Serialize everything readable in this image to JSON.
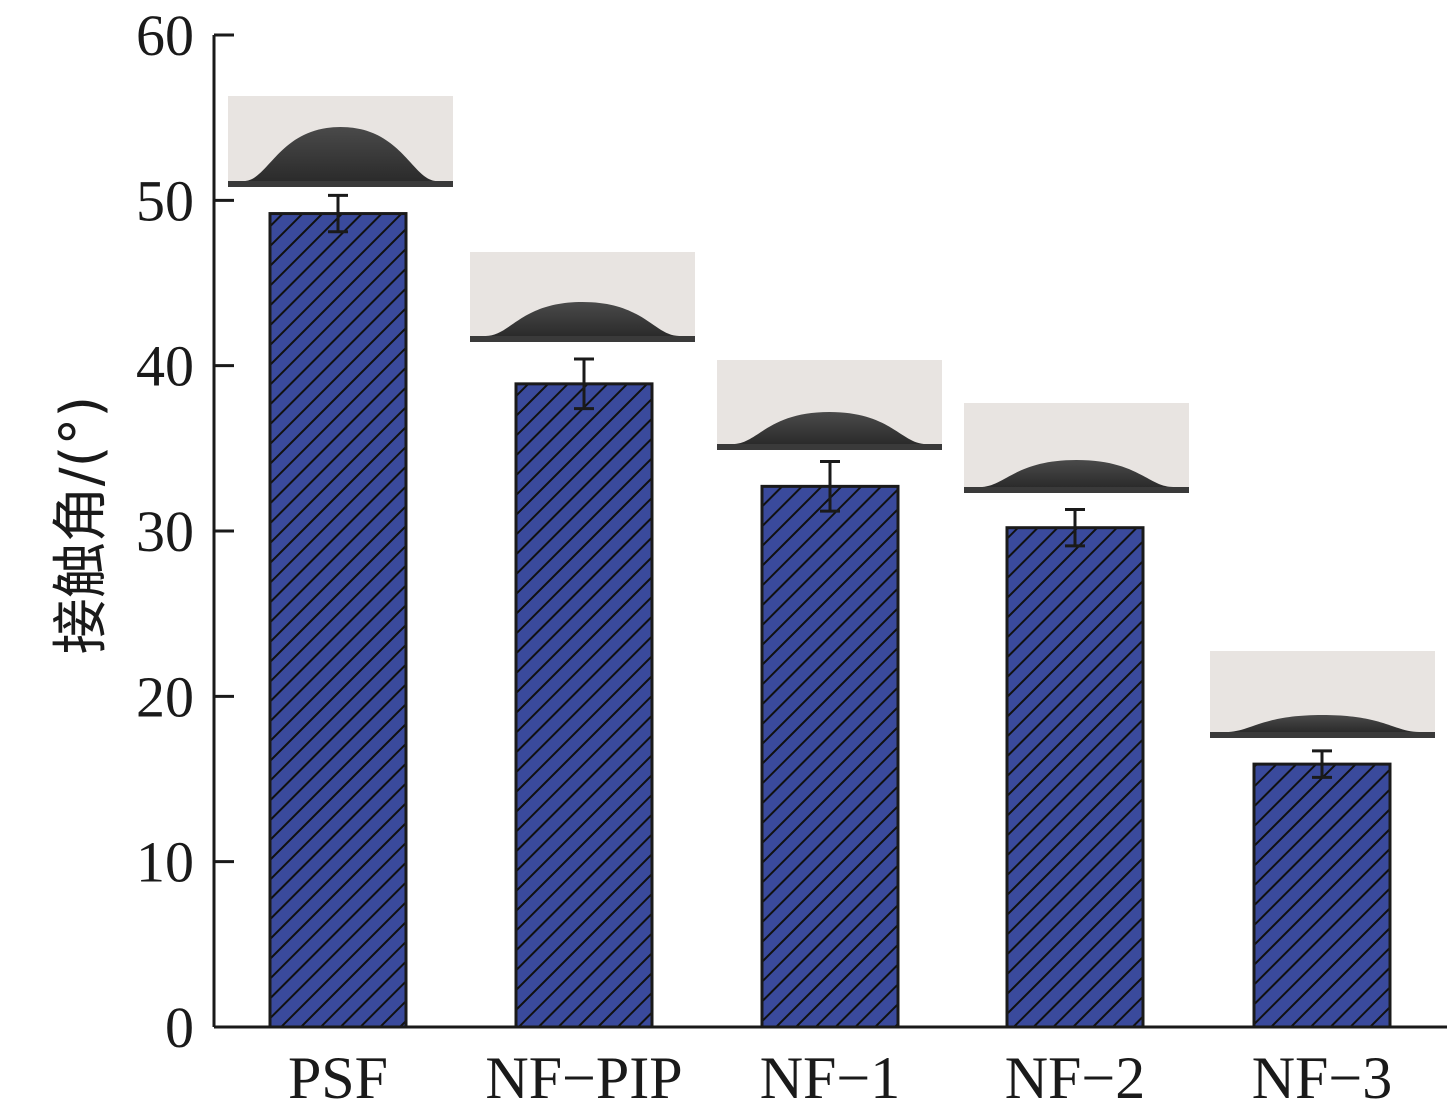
{
  "chart_data": {
    "type": "bar",
    "categories": [
      "PSF",
      "NF−PIP",
      "NF−1",
      "NF−2",
      "NF−3"
    ],
    "values": [
      49.2,
      38.9,
      32.7,
      30.2,
      15.9
    ],
    "errors": [
      1.1,
      1.5,
      1.5,
      1.1,
      0.8
    ],
    "ylabel": "接触角/(°)",
    "xlabel": "",
    "ylim": [
      0,
      60
    ],
    "yticks": [
      "0",
      "10",
      "20",
      "30",
      "40",
      "50",
      "60"
    ],
    "grid": false,
    "bar_color": "#3a4a9c",
    "hatch_color": "#111111",
    "inset_images": [
      "droplet-photo-psf",
      "droplet-photo-nf-pip",
      "droplet-photo-nf-1",
      "droplet-photo-nf-2",
      "droplet-photo-nf-3"
    ]
  }
}
